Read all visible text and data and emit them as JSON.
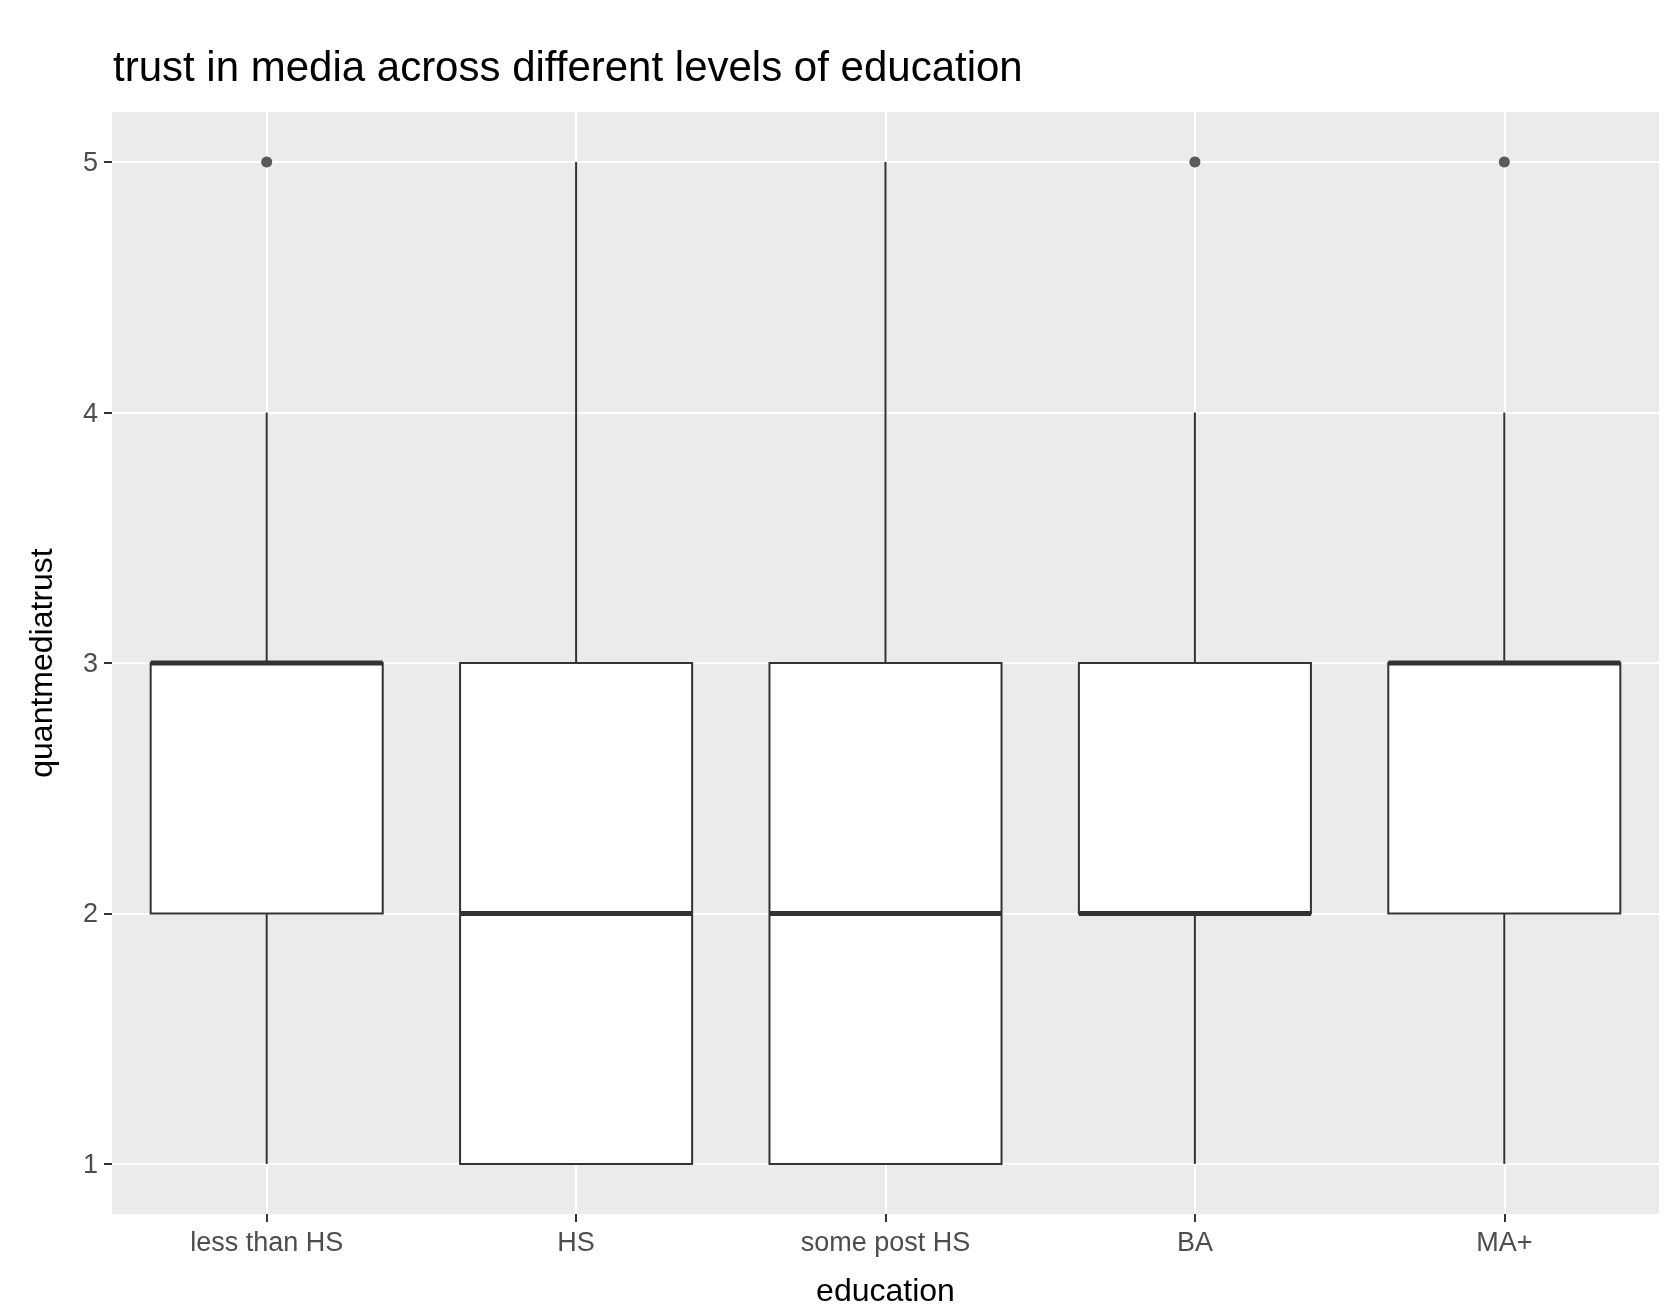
{
  "chart_data": {
    "type": "box",
    "title": "trust in media across different levels of education",
    "xlabel": "education",
    "ylabel": "quantmediatrust",
    "categories": [
      "less than HS",
      "HS",
      "some post HS",
      "BA",
      "MA+"
    ],
    "boxes": [
      {
        "low": 1,
        "q1": 2,
        "median": 3,
        "q3": 3,
        "high": 4,
        "outliers": [
          5
        ]
      },
      {
        "low": 1,
        "q1": 1,
        "median": 2,
        "q3": 3,
        "high": 5
      },
      {
        "low": 1,
        "q1": 1,
        "median": 2,
        "q3": 3,
        "high": 5
      },
      {
        "low": 1,
        "q1": 2,
        "median": 2,
        "q3": 3,
        "high": 4,
        "outliers": [
          5
        ]
      },
      {
        "low": 1,
        "q1": 2,
        "median": 3,
        "q3": 3,
        "high": 4,
        "outliers": [
          5
        ]
      }
    ],
    "ylim": [
      0.8,
      5.2
    ],
    "yticks": [
      1,
      2,
      3,
      4,
      5
    ],
    "grid": true
  }
}
